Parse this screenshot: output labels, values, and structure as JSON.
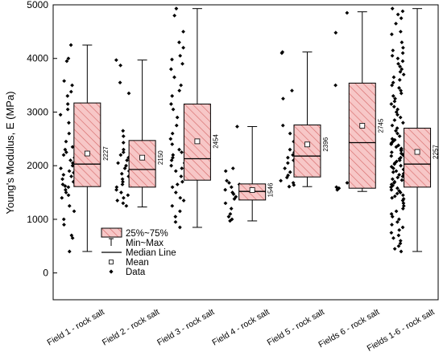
{
  "chart_data": {
    "type": "box",
    "title": "",
    "xlabel": "",
    "ylabel": "Young's Modulus, E (MPa)",
    "ylim": [
      -500,
      5000
    ],
    "yticks": [
      0,
      1000,
      2000,
      3000,
      4000,
      5000
    ],
    "grid": false,
    "legend_position": "bottom-left",
    "colors": {
      "box_fill": "#f7c7c7",
      "box_stroke": "#000000",
      "hatch": "#d66b6b",
      "points": "#000000"
    },
    "legend": [
      {
        "label": "25%~75%",
        "icon": "hatched-box-icon"
      },
      {
        "label": "Min~Max",
        "icon": "whisker-icon"
      },
      {
        "label": "Median Line",
        "icon": "median-line-icon"
      },
      {
        "label": "Mean",
        "icon": "mean-square-icon"
      },
      {
        "label": "Data",
        "icon": "diamond-icon"
      }
    ],
    "categories": [
      "Field 1 - rock salt",
      "Field 2 - rock salt",
      "Field 3 - rock salt",
      "Field 4 - rock salt",
      "Field 5 - rock salt",
      "Fields 6 - rock salt",
      "Fields 1-6 - rock salt"
    ],
    "boxes": [
      {
        "min": 400,
        "q1": 1610,
        "median": 2030,
        "q3": 3170,
        "max": 4250,
        "mean": 2227,
        "mean_label": "2227",
        "data": [
          4250,
          4000,
          3950,
          3580,
          3500,
          3380,
          3300,
          3150,
          3050,
          2950,
          2800,
          2600,
          2450,
          2350,
          2300,
          2250,
          2200,
          2150,
          2100,
          2050,
          2000,
          1950,
          1900,
          1870,
          1830,
          1800,
          1750,
          1700,
          1650,
          1620,
          1600,
          1550,
          1500,
          1450,
          1400,
          1250,
          1150,
          1000,
          900,
          700,
          650,
          400
        ]
      },
      {
        "min": 1230,
        "q1": 1600,
        "median": 1930,
        "q3": 2470,
        "max": 3970,
        "mean": 2150,
        "mean_label": "2150",
        "data": [
          3970,
          3870,
          3550,
          3350,
          2650,
          2550,
          2430,
          2300,
          2250,
          2200,
          2150,
          2100,
          2050,
          2000,
          1950,
          1900,
          1850,
          1800,
          1750,
          1700,
          1650,
          1600,
          1550,
          1500,
          1450,
          1400,
          1350,
          1300,
          1250
        ]
      },
      {
        "min": 850,
        "q1": 1730,
        "median": 2130,
        "q3": 3150,
        "max": 4930,
        "mean": 2454,
        "mean_label": "2454",
        "data": [
          4930,
          4800,
          4500,
          4300,
          4200,
          4050,
          3980,
          3900,
          3800,
          3650,
          3500,
          3400,
          3300,
          3150,
          3050,
          2900,
          2750,
          2600,
          2500,
          2400,
          2300,
          2250,
          2200,
          2150,
          2100,
          2050,
          2000,
          1950,
          1900,
          1800,
          1700,
          1650,
          1600,
          1500,
          1400,
          1350,
          1250,
          1150,
          1050,
          950,
          850
        ]
      },
      {
        "min": 970,
        "q1": 1360,
        "median": 1520,
        "q3": 1660,
        "max": 2730,
        "mean": 1546,
        "mean_label": "1546",
        "data": [
          2730,
          1950,
          1900,
          1720,
          1680,
          1650,
          1600,
          1550,
          1500,
          1470,
          1420,
          1380,
          1300,
          1200,
          1100,
          1050,
          1000,
          970
        ]
      },
      {
        "min": 1610,
        "q1": 1790,
        "median": 2180,
        "q3": 2760,
        "max": 4120,
        "mean": 2396,
        "mean_label": "2396",
        "data": [
          4120,
          4100,
          3400,
          3250,
          2750,
          2600,
          2450,
          2300,
          2250,
          2200,
          2150,
          2100,
          2050,
          1950,
          1880,
          1820,
          1780,
          1720,
          1680,
          1640,
          1610
        ]
      },
      {
        "min": 1520,
        "q1": 1580,
        "median": 2430,
        "q3": 3540,
        "max": 4870,
        "mean": 2745,
        "mean_label": "2745",
        "data": [
          4850,
          4480,
          3500,
          1680,
          1600,
          1580,
          1550
        ]
      },
      {
        "min": 400,
        "q1": 1600,
        "median": 2030,
        "q3": 2700,
        "max": 4930,
        "mean": 2257,
        "mean_label": "2257",
        "data": [
          4930,
          4880,
          4820,
          4750,
          4650,
          4500,
          4450,
          4300,
          4200,
          4150,
          4100,
          4050,
          4000,
          3950,
          3900,
          3850,
          3800,
          3750,
          3700,
          3650,
          3600,
          3550,
          3500,
          3450,
          3400,
          3350,
          3300,
          3250,
          3200,
          3150,
          3100,
          3050,
          3000,
          2950,
          2900,
          2850,
          2800,
          2750,
          2700,
          2650,
          2600,
          2550,
          2500,
          2480,
          2450,
          2420,
          2400,
          2380,
          2350,
          2320,
          2300,
          2280,
          2250,
          2230,
          2200,
          2180,
          2150,
          2130,
          2100,
          2080,
          2050,
          2030,
          2000,
          1980,
          1950,
          1930,
          1900,
          1880,
          1850,
          1830,
          1800,
          1780,
          1750,
          1730,
          1700,
          1680,
          1650,
          1630,
          1600,
          1580,
          1550,
          1530,
          1500,
          1480,
          1450,
          1430,
          1400,
          1380,
          1350,
          1300,
          1250,
          1200,
          1150,
          1100,
          1050,
          1000,
          950,
          900,
          850,
          800,
          750,
          700,
          650,
          600,
          550,
          500,
          450,
          400
        ]
      }
    ]
  }
}
